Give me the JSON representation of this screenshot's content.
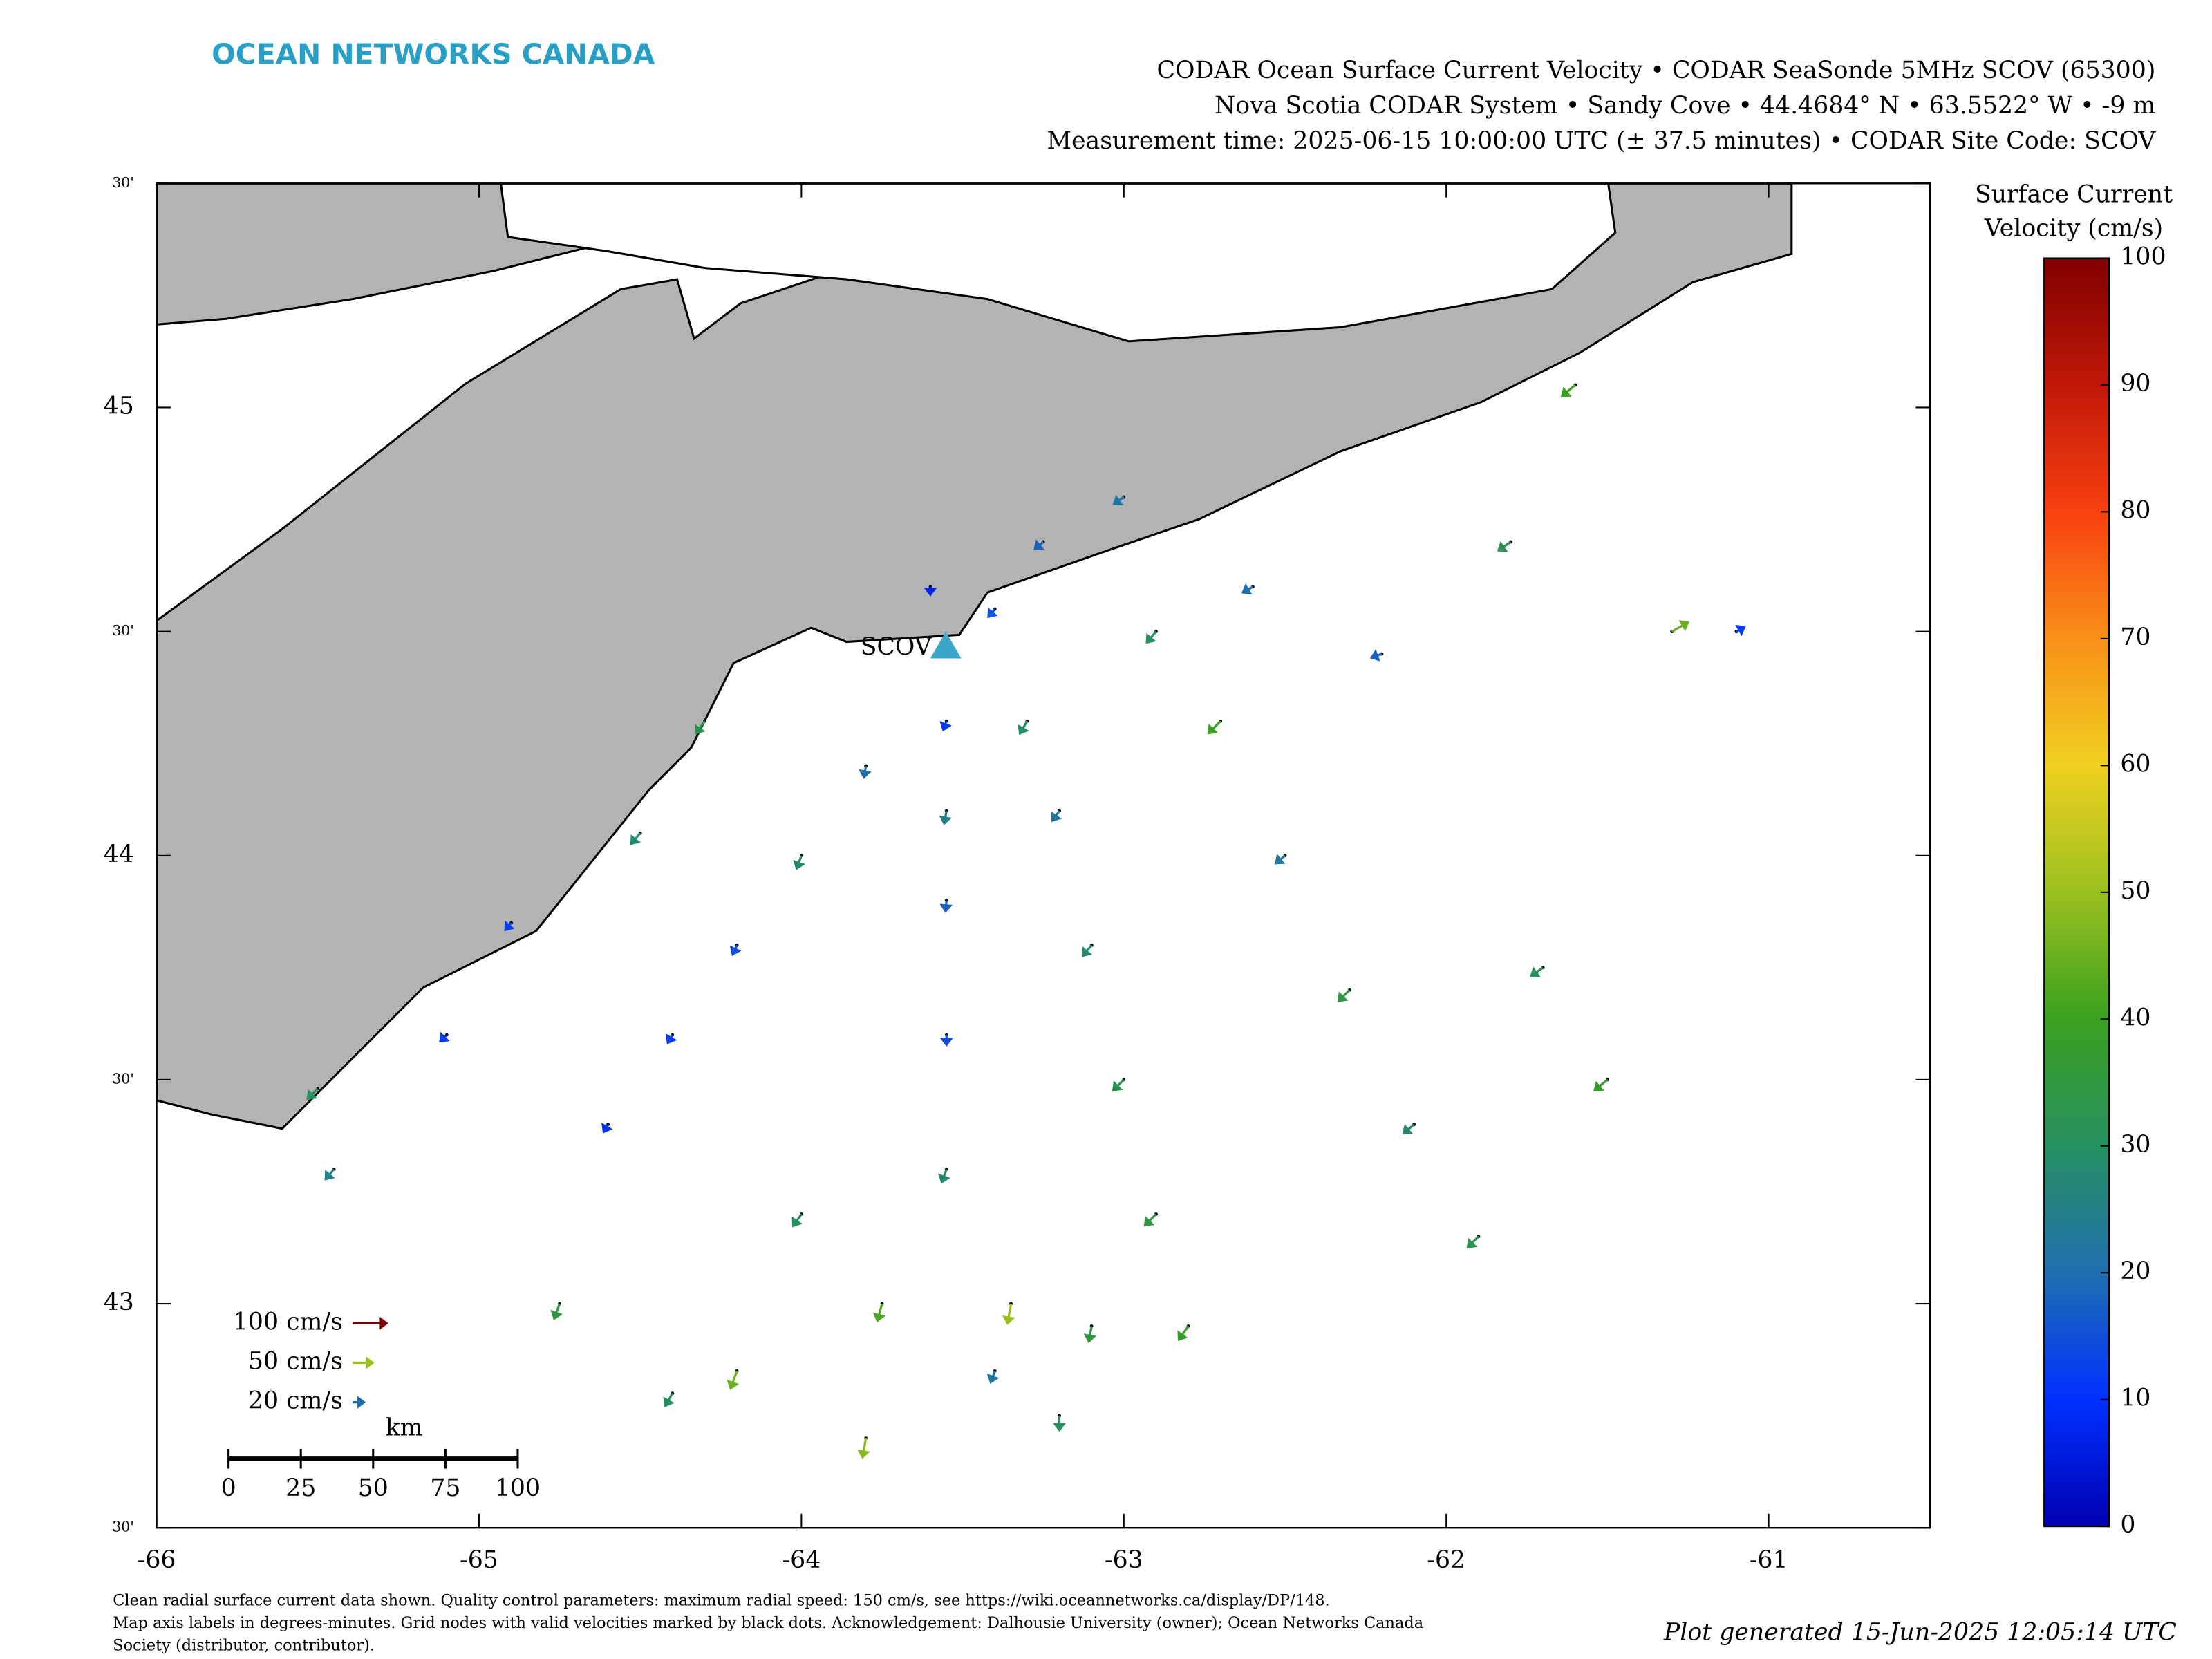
{
  "chart_data": {
    "type": "vector_map",
    "logo": "OCEAN NETWORKS CANADA",
    "title_lines": [
      "CODAR Ocean Surface Current Velocity • CODAR SeaSonde 5MHz SCOV (65300)",
      "Nova Scotia CODAR System • Sandy Cove • 44.4684° N • 63.5522° W • -9 m",
      "Measurement time: 2025-06-15 10:00:00 UTC (± 37.5 minutes) • CODAR Site Code: SCOV"
    ],
    "xlim": [
      -66,
      -60.5
    ],
    "ylim": [
      42.5,
      45.5
    ],
    "xticks": [
      -66,
      -65,
      -64,
      -63,
      -62,
      -61
    ],
    "yticks": [
      {
        "value": 42.5,
        "label": "30'"
      },
      43,
      {
        "value": 43.5,
        "label": "30'"
      },
      44,
      {
        "value": 44.5,
        "label": "30'"
      },
      45,
      {
        "value": 45.5,
        "label": "30'"
      }
    ],
    "site": {
      "label": "SCOV",
      "lon": -63.5522,
      "lat": 44.4684,
      "color": "#3aa6c8"
    },
    "vectors": {
      "lon": [
        -63.55,
        -63.55,
        -63.55,
        -63.55,
        -63.55,
        -63.3,
        -63.2,
        -63.1,
        -63.0,
        -62.9,
        -62.8,
        -62.9,
        -62.7,
        -62.5,
        -62.3,
        -62.1,
        -61.9,
        -62.6,
        -62.2,
        -61.8,
        -61.6,
        -61.3,
        -61.1,
        -61.5,
        -61.7,
        -63.8,
        -64.0,
        -64.2,
        -64.4,
        -64.6,
        -64.75,
        -64.4,
        -64.2,
        -63.8,
        -63.75,
        -63.4,
        -63.35,
        -63.2,
        -63.1,
        -64.0,
        -64.3,
        -64.5,
        -64.9,
        -65.1,
        -65.5,
        -65.45,
        -63.6,
        -63.4,
        -63.25,
        -63.0
      ],
      "lat": [
        44.3,
        44.1,
        43.9,
        43.6,
        43.3,
        44.3,
        44.1,
        43.8,
        43.5,
        43.2,
        42.95,
        44.5,
        44.3,
        44.0,
        43.7,
        43.4,
        43.15,
        44.6,
        44.45,
        44.7,
        45.05,
        44.5,
        44.5,
        43.5,
        43.75,
        44.2,
        44.0,
        43.8,
        43.6,
        43.4,
        43.0,
        42.8,
        42.85,
        42.7,
        43.0,
        42.85,
        43.0,
        42.75,
        42.95,
        43.2,
        44.3,
        44.05,
        43.85,
        43.6,
        43.48,
        43.3,
        44.6,
        44.55,
        44.7,
        44.8
      ],
      "speed": [
        12,
        25,
        18,
        15,
        28,
        30,
        22,
        28,
        32,
        35,
        38,
        30,
        40,
        22,
        34,
        28,
        33,
        20,
        18,
        32,
        40,
        45,
        12,
        38,
        30,
        20,
        28,
        15,
        12,
        10,
        35,
        30,
        45,
        48,
        42,
        22,
        50,
        30,
        35,
        30,
        32,
        28,
        12,
        12,
        30,
        25,
        8,
        15,
        18,
        22
      ],
      "direction": [
        200,
        190,
        185,
        180,
        200,
        210,
        215,
        220,
        225,
        225,
        215,
        220,
        225,
        230,
        225,
        230,
        225,
        240,
        250,
        235,
        230,
        60,
        60,
        230,
        235,
        190,
        200,
        205,
        210,
        210,
        200,
        210,
        200,
        190,
        195,
        200,
        190,
        180,
        190,
        215,
        215,
        220,
        220,
        225,
        225,
        220,
        180,
        220,
        230,
        235
      ]
    },
    "colorbar": {
      "title_lines": [
        "Surface Current",
        "Velocity (cm/s)"
      ],
      "lim": [
        0,
        100
      ],
      "ticks": [
        0,
        10,
        20,
        30,
        40,
        50,
        60,
        70,
        80,
        90,
        100
      ],
      "colormap": [
        "#0000b0",
        "#0030ff",
        "#1f6fb0",
        "#269060",
        "#3aa020",
        "#9ac020",
        "#f0d020",
        "#f89018",
        "#f84010",
        "#c01808",
        "#800000"
      ]
    },
    "legend": [
      {
        "value": 100,
        "label": "100 cm/s"
      },
      {
        "value": 50,
        "label": "50 cm/s"
      },
      {
        "value": 20,
        "label": "20 cm/s"
      }
    ],
    "scale_bar": {
      "label": "km",
      "ticks": [
        0,
        25,
        50,
        75,
        100
      ]
    },
    "footer_lines": [
      "Clean radial surface current data shown. Quality control parameters: maximum radial speed: 150 cm/s, see https://wiki.oceannetworks.ca/display/DP/148.",
      "Map axis labels in degrees-minutes. Grid nodes with valid velocities marked by black dots. Acknowledgement: Dalhousie University (owner); Ocean Networks Canada",
      "Society (distributor, contributor)."
    ],
    "generated": "Plot generated 15-Jun-2025 12:05:14 UTC"
  }
}
